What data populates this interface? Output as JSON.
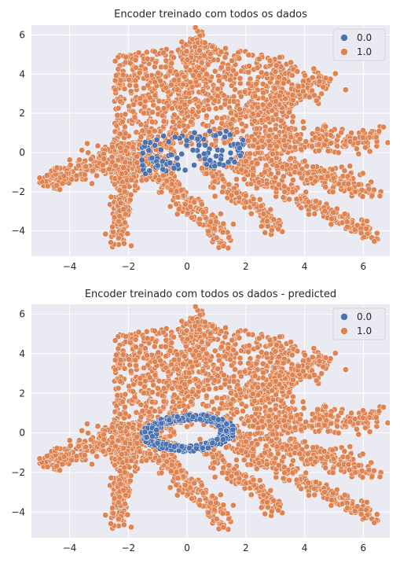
{
  "colors": {
    "background": "#ffffff",
    "axes_face": "#eaeaf2",
    "grid": "#ffffff",
    "text": "#262626",
    "class_0": "#4c72b0",
    "class_1": "#dd8452"
  },
  "chart_data": [
    {
      "type": "scatter",
      "title": "Encoder treinado com todos os dados",
      "xlabel": "",
      "ylabel": "",
      "xlim": [
        -5.3,
        6.9
      ],
      "ylim": [
        -5.3,
        6.5
      ],
      "xticks": [
        -4,
        -2,
        0,
        2,
        4,
        6
      ],
      "yticks": [
        -4,
        -2,
        0,
        2,
        4,
        6
      ],
      "xtick_labels": [
        "−4",
        "−2",
        "0",
        "2",
        "4",
        "6"
      ],
      "ytick_labels": [
        "−4",
        "−2",
        "0",
        "2",
        "4",
        "6"
      ],
      "grid": true,
      "legend": {
        "placement": "top-right",
        "entries": [
          "0.0",
          "1.0"
        ]
      },
      "series": [
        {
          "name": "0.0",
          "color_key": "class_0",
          "shape": "scattered_center",
          "points_approx": [
            [
              -1.5,
              -0.4
            ],
            [
              -1.0,
              -0.6
            ],
            [
              -0.8,
              0.2
            ],
            [
              -0.3,
              -0.7
            ],
            [
              0.0,
              0.0
            ],
            [
              0.4,
              0.3
            ],
            [
              0.8,
              0.5
            ],
            [
              1.0,
              -0.6
            ],
            [
              1.5,
              0.3
            ],
            [
              1.7,
              0.6
            ],
            [
              0.5,
              -0.5
            ],
            [
              -0.6,
              -0.3
            ]
          ]
        },
        {
          "name": "1.0",
          "color_key": "class_1",
          "shape": "fan_with_arms",
          "points_approx": [
            [
              -4.9,
              -1.5
            ],
            [
              -3.0,
              -0.5
            ],
            [
              -2.3,
              -4.5
            ],
            [
              -2.0,
              2.0
            ],
            [
              0.0,
              5.5
            ],
            [
              2.5,
              3.5
            ],
            [
              4.8,
              3.6
            ],
            [
              6.5,
              0.8
            ],
            [
              6.4,
              -2.0
            ],
            [
              6.5,
              -4.3
            ],
            [
              3.2,
              -4.0
            ],
            [
              1.2,
              -4.2
            ]
          ]
        }
      ]
    },
    {
      "type": "scatter",
      "title": "Encoder treinado com todos os dados - predicted",
      "xlabel": "",
      "ylabel": "",
      "xlim": [
        -5.3,
        6.9
      ],
      "ylim": [
        -5.3,
        6.5
      ],
      "xticks": [
        -4,
        -2,
        0,
        2,
        4,
        6
      ],
      "yticks": [
        -4,
        -2,
        0,
        2,
        4,
        6
      ],
      "xtick_labels": [
        "−4",
        "−2",
        "0",
        "2",
        "4",
        "6"
      ],
      "ytick_labels": [
        "−4",
        "−2",
        "0",
        "2",
        "4",
        "6"
      ],
      "grid": true,
      "legend": {
        "placement": "top-right",
        "entries": [
          "0.0",
          "1.0"
        ]
      },
      "series": [
        {
          "name": "0.0",
          "color_key": "class_0",
          "shape": "ring_center",
          "points_approx": [
            [
              -1.4,
              -0.6
            ],
            [
              -1.0,
              -0.8
            ],
            [
              -1.0,
              0.3
            ],
            [
              -0.3,
              -0.9
            ],
            [
              0.0,
              0.8
            ],
            [
              0.8,
              0.9
            ],
            [
              1.4,
              0.4
            ],
            [
              1.5,
              -0.3
            ],
            [
              0.8,
              -0.7
            ],
            [
              -0.5,
              0.6
            ]
          ]
        },
        {
          "name": "1.0",
          "color_key": "class_1",
          "shape": "fan_with_arms",
          "points_approx": [
            [
              -4.9,
              -1.5
            ],
            [
              -3.0,
              -0.5
            ],
            [
              -2.3,
              -4.5
            ],
            [
              -2.0,
              2.0
            ],
            [
              0.0,
              5.5
            ],
            [
              2.5,
              3.5
            ],
            [
              4.8,
              3.6
            ],
            [
              6.5,
              0.8
            ],
            [
              6.4,
              -2.0
            ],
            [
              6.5,
              -4.3
            ],
            [
              3.2,
              -4.0
            ],
            [
              1.2,
              -4.2
            ]
          ]
        }
      ]
    }
  ]
}
